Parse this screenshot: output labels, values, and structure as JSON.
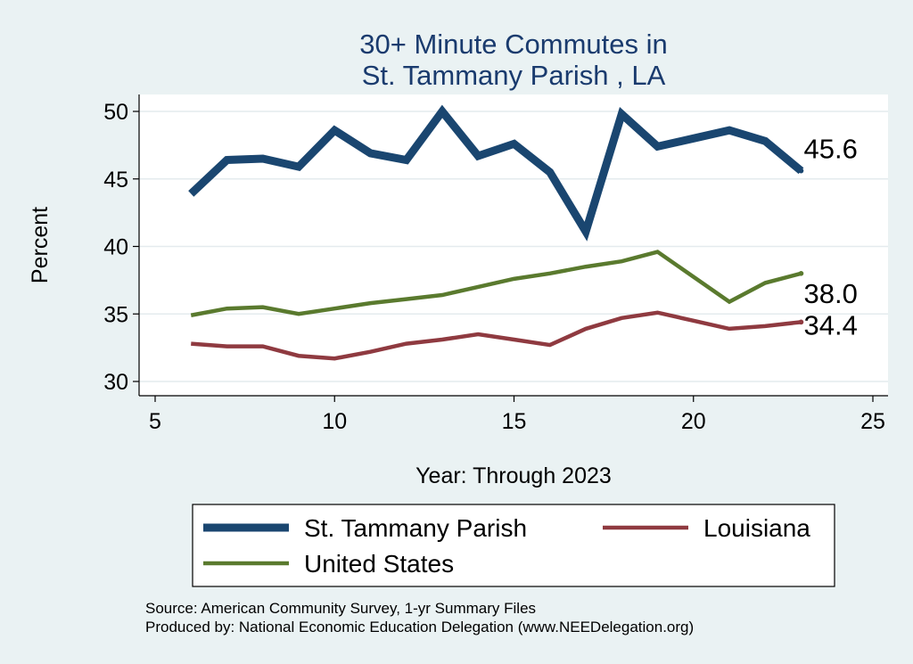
{
  "chart_data": {
    "type": "line",
    "title_lines": [
      "30+ Minute Commutes in",
      "St. Tammany Parish , LA"
    ],
    "xlabel": "Year: Through 2023",
    "ylabel": "Percent",
    "xlim": [
      5,
      25
    ],
    "ylim": [
      30,
      50
    ],
    "xticks": [
      5,
      10,
      15,
      20,
      25
    ],
    "yticks": [
      30,
      35,
      40,
      45,
      50
    ],
    "grid": true,
    "legend_position": "bottom",
    "series": [
      {
        "name": "St. Tammany Parish",
        "color": "#1a4670",
        "width": "thick",
        "x": [
          6,
          7,
          8,
          9,
          10,
          11,
          12,
          13,
          14,
          15,
          16,
          17,
          18,
          19,
          20,
          21,
          22,
          23
        ],
        "values": [
          43.9,
          46.4,
          46.5,
          45.9,
          48.6,
          46.9,
          46.4,
          50.0,
          46.7,
          47.6,
          45.5,
          41.1,
          49.8,
          47.4,
          48.0,
          48.6,
          47.8,
          45.6
        ],
        "end_label": "45.6"
      },
      {
        "name": "Louisiana",
        "color": "#8f3a40",
        "width": "medium",
        "x": [
          6,
          7,
          8,
          9,
          10,
          11,
          12,
          13,
          14,
          15,
          16,
          17,
          18,
          19,
          20,
          21,
          22,
          23
        ],
        "values": [
          32.8,
          32.6,
          32.6,
          31.9,
          31.7,
          32.2,
          32.8,
          33.1,
          33.5,
          33.1,
          32.7,
          33.9,
          34.7,
          35.1,
          34.5,
          33.9,
          34.1,
          34.4
        ],
        "end_label": "34.4"
      },
      {
        "name": "United States",
        "color": "#5a7a2e",
        "width": "medium",
        "x": [
          6,
          7,
          8,
          9,
          10,
          11,
          12,
          13,
          14,
          15,
          16,
          17,
          18,
          19,
          21,
          22,
          23
        ],
        "values": [
          34.9,
          35.4,
          35.5,
          35.0,
          35.4,
          35.8,
          36.1,
          36.4,
          37.0,
          37.6,
          38.0,
          38.5,
          38.9,
          39.6,
          35.9,
          37.3,
          38.0
        ],
        "end_label": "38.0"
      }
    ],
    "source_lines": [
      "Source: American Community Survey, 1-yr Summary Files",
      "Produced by: National Economic Education Delegation (www.NEEDelegation.org)"
    ]
  }
}
